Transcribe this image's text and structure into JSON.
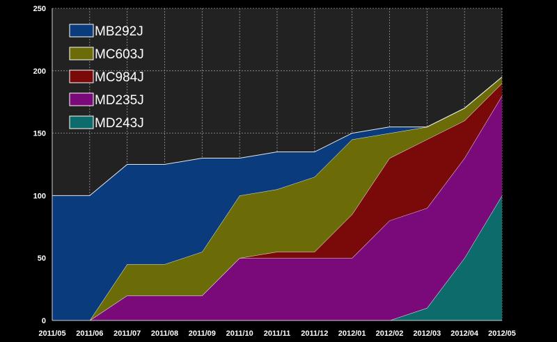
{
  "chart_data": {
    "type": "area",
    "stacked": true,
    "categories": [
      "2011/05",
      "2011/06",
      "2011/07",
      "2011/08",
      "2011/09",
      "2011/10",
      "2011/11",
      "2011/12",
      "2012/01",
      "2012/02",
      "2012/03",
      "2012/04",
      "2012/05"
    ],
    "ylim": [
      0,
      250
    ],
    "yticks": [
      0,
      50,
      100,
      150,
      200,
      250
    ],
    "grid": true,
    "legend_position": "top-left",
    "background": "#222222",
    "series": [
      {
        "name": "MD243J",
        "color": "#0d6b6b",
        "values": [
          0,
          0,
          0,
          0,
          0,
          0,
          0,
          0,
          0,
          0,
          10,
          50,
          100
        ]
      },
      {
        "name": "MD235J",
        "color": "#7a0a7a",
        "values": [
          0,
          0,
          20,
          20,
          20,
          50,
          50,
          50,
          50,
          80,
          80,
          80,
          80
        ]
      },
      {
        "name": "MC984J",
        "color": "#7a0a0a",
        "values": [
          0,
          0,
          0,
          0,
          0,
          0,
          5,
          5,
          35,
          50,
          55,
          30,
          10
        ]
      },
      {
        "name": "MC603J",
        "color": "#6b6b08",
        "values": [
          0,
          0,
          25,
          25,
          35,
          50,
          50,
          60,
          60,
          20,
          10,
          10,
          5
        ]
      },
      {
        "name": "MB292J",
        "color": "#0a3c7d",
        "values": [
          100,
          100,
          80,
          80,
          75,
          30,
          30,
          20,
          5,
          5,
          0,
          0,
          0
        ]
      }
    ],
    "legend_order": [
      "MB292J",
      "MC603J",
      "MC984J",
      "MD235J",
      "MD243J"
    ]
  }
}
